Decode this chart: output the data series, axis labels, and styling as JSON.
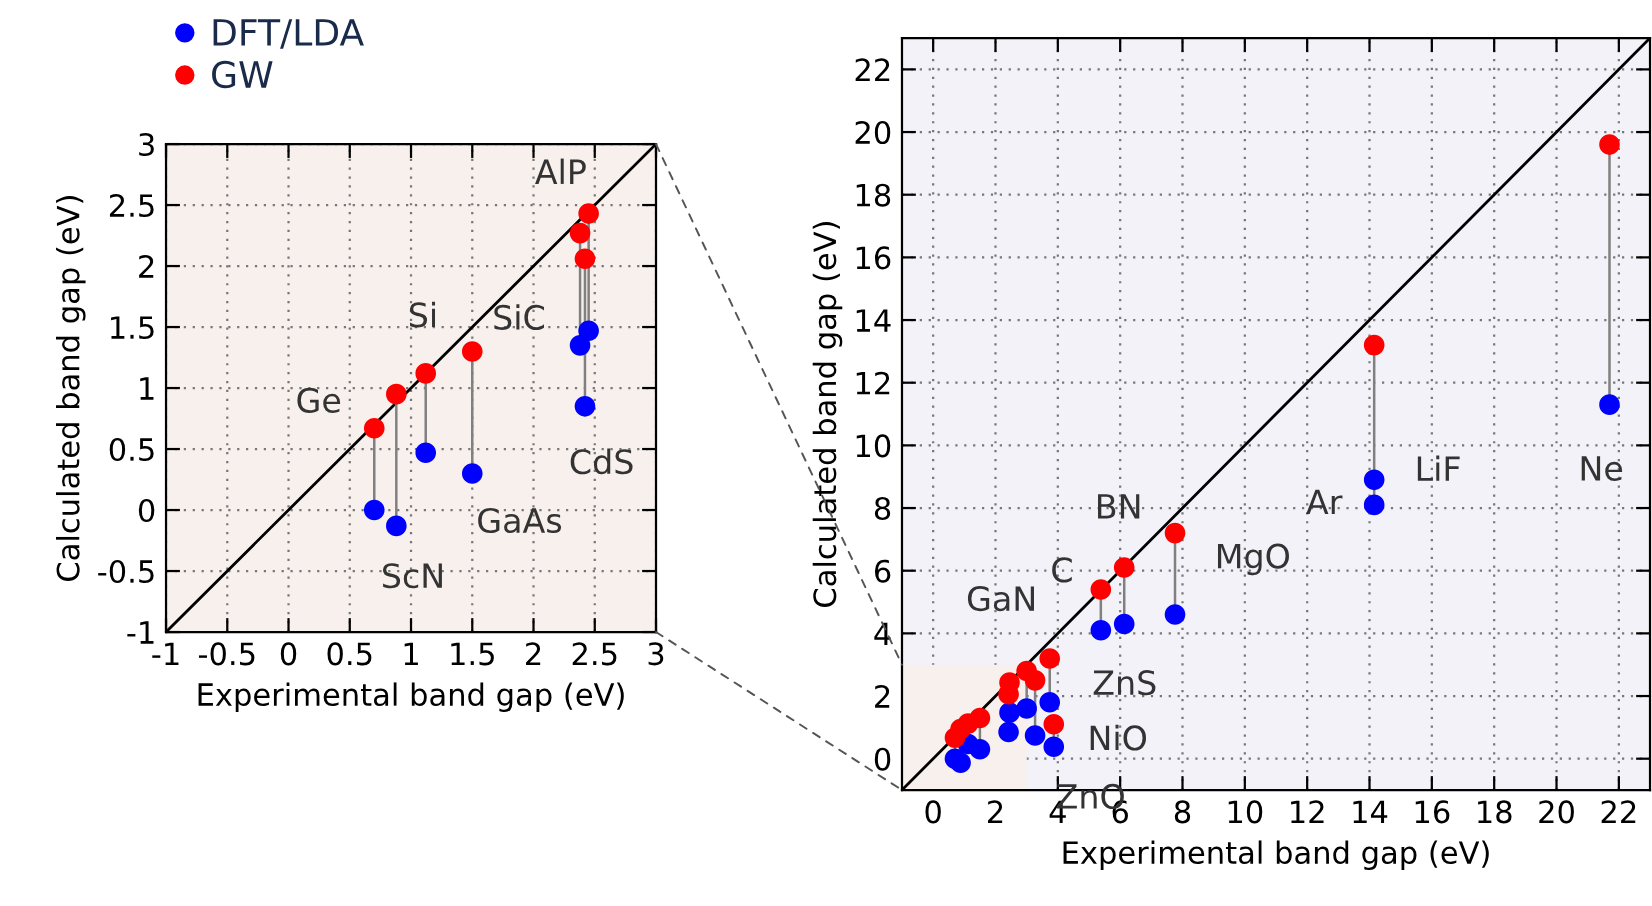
{
  "chart_data": [
    {
      "type": "scatter",
      "xlabel": "Experimental band gap (eV)",
      "ylabel": "Calculated band gap (eV)",
      "xlim": [
        -1,
        3
      ],
      "ylim": [
        -1,
        3
      ],
      "xticks": [
        -1,
        -0.5,
        0,
        0.5,
        1,
        1.5,
        2,
        2.5,
        3
      ],
      "yticks": [
        -1,
        -0.5,
        0,
        0.5,
        1,
        1.5,
        2,
        2.5,
        3
      ],
      "grid": true,
      "legend": "top left",
      "marker": "circle",
      "series": [
        {
          "type": "line",
          "marker": "none",
          "color": "#000000",
          "x": [
            -1,
            3
          ],
          "values": [
            -1,
            3
          ]
        },
        {
          "name": "DFT/LDA",
          "color": "#0000ff",
          "x": [
            0.7,
            0.88,
            1.12,
            1.5,
            2.38,
            2.42,
            2.45
          ],
          "values": [
            0.0,
            -0.13,
            0.47,
            0.3,
            1.35,
            0.85,
            1.47
          ]
        },
        {
          "name": "GW",
          "color": "#ff0000",
          "x": [
            0.7,
            0.88,
            1.12,
            1.5,
            2.38,
            2.42,
            2.45
          ],
          "values": [
            0.67,
            0.95,
            1.12,
            1.3,
            2.27,
            2.06,
            2.43
          ]
        }
      ],
      "annotations": [
        {
          "text": "Ge",
          "x": 0.7,
          "y": 0.67
        },
        {
          "text": "Si",
          "x": 1.12,
          "y": 1.12
        },
        {
          "text": "GaAs",
          "x": 1.5,
          "y": 0.3
        },
        {
          "text": "ScN",
          "x": 0.88,
          "y": -0.13
        },
        {
          "text": "AlP",
          "x": 2.45,
          "y": 2.43
        },
        {
          "text": "SiC",
          "x": 2.38,
          "y": 1.35
        },
        {
          "text": "CdS",
          "x": 2.42,
          "y": 0.85
        }
      ]
    },
    {
      "type": "scatter",
      "xlabel": "Experimental band gap (eV)",
      "ylabel": "Calculated band gap (eV)",
      "xlim": [
        -1,
        23
      ],
      "ylim": [
        -1,
        23
      ],
      "xticks": [
        0,
        2,
        4,
        6,
        8,
        10,
        12,
        14,
        16,
        18,
        20,
        22
      ],
      "yticks": [
        0,
        2,
        4,
        6,
        8,
        10,
        12,
        14,
        16,
        18,
        20,
        22
      ],
      "grid": true,
      "marker": "circle",
      "series": [
        {
          "type": "line",
          "marker": "none",
          "color": "#000000",
          "x": [
            -1,
            23
          ],
          "values": [
            -1,
            23
          ]
        },
        {
          "color": "#0000ff",
          "x": [
            0.7,
            0.88,
            1.12,
            1.5,
            2.38,
            2.42,
            2.45,
            3.0,
            3.27,
            3.74,
            3.87,
            5.38,
            6.13,
            7.76,
            14.15,
            14.15,
            21.7
          ],
          "values": [
            0.0,
            -0.13,
            0.47,
            0.3,
            null,
            0.85,
            1.47,
            1.6,
            0.74,
            1.8,
            0.38,
            4.1,
            4.3,
            4.6,
            8.9,
            8.1,
            11.3
          ]
        },
        {
          "color": "#ff0000",
          "x": [
            0.7,
            0.88,
            1.12,
            1.5,
            2.38,
            2.42,
            2.45,
            3.0,
            3.27,
            3.74,
            3.87,
            5.38,
            6.13,
            7.76,
            null,
            14.15,
            21.7
          ],
          "values": [
            0.67,
            0.95,
            1.12,
            1.3,
            null,
            2.06,
            2.43,
            2.8,
            2.5,
            3.2,
            1.1,
            5.4,
            6.1,
            7.2,
            null,
            13.2,
            19.6
          ]
        }
      ],
      "annotations": [
        {
          "text": "LiF",
          "x": 14.15,
          "y": 8.9
        },
        {
          "text": "Ar",
          "x": 14.15,
          "y": 8.1
        },
        {
          "text": "Ne",
          "x": 21.7,
          "y": 11.3
        },
        {
          "text": "BN",
          "x": 6.13,
          "y": 6.1
        },
        {
          "text": "C",
          "x": 5.38,
          "y": 5.4
        },
        {
          "text": "MgO",
          "x": 7.76,
          "y": 4.6
        },
        {
          "text": "GaN",
          "x": 3.0,
          "y": 2.8
        },
        {
          "text": "ZnS",
          "x": 3.74,
          "y": 1.8
        },
        {
          "text": "NiO",
          "x": 3.87,
          "y": 1.1
        },
        {
          "text": "ZnO",
          "x": 3.27,
          "y": 0.74
        }
      ]
    }
  ]
}
